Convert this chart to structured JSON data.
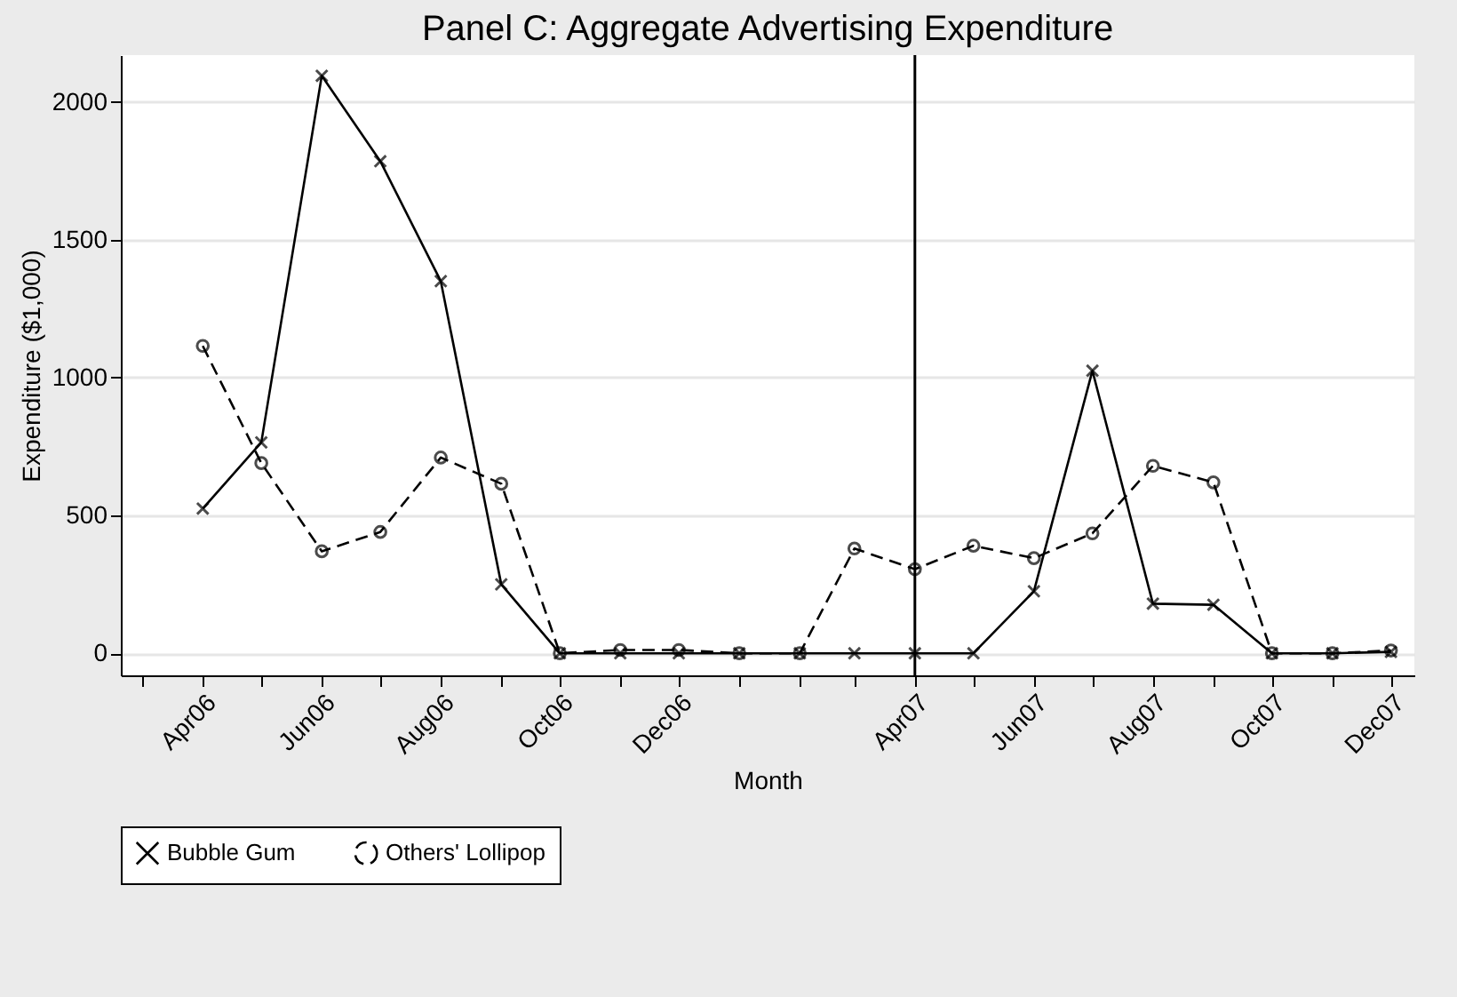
{
  "chart_data": {
    "type": "line",
    "title": "Panel C: Aggregate Advertising Expenditure",
    "xlabel": "Month",
    "ylabel": "Expenditure ($1,000)",
    "x": [
      "2006-04",
      "2006-05",
      "2006-06",
      "2006-07",
      "2006-08",
      "2006-09",
      "2006-10",
      "2006-11",
      "2006-12",
      "2007-01",
      "2007-02",
      "2007-03",
      "2007-04",
      "2007-05",
      "2007-06",
      "2007-07",
      "2007-08",
      "2007-09",
      "2007-10",
      "2007-11",
      "2007-12"
    ],
    "series": [
      {
        "name": "Bubble Gum",
        "color": "#000000",
        "marker": "cross",
        "line_style": "solid",
        "values": [
          525,
          765,
          2095,
          1785,
          1350,
          250,
          0,
          0,
          0,
          0,
          0,
          0,
          0,
          0,
          225,
          1025,
          180,
          176,
          0,
          0,
          5
        ]
      },
      {
        "name": "Others' Lollipop",
        "color": "#000000",
        "marker": "circle",
        "line_style": "dashed",
        "values": [
          1115,
          690,
          370,
          440,
          710,
          615,
          0,
          12,
          12,
          0,
          0,
          380,
          305,
          390,
          345,
          435,
          680,
          620,
          0,
          0,
          10
        ]
      }
    ],
    "xlim": [
      "2006-02-18",
      "2007-12-13"
    ],
    "xticks": [
      {
        "value": "2006-03",
        "label": null
      },
      {
        "value": "2006-04",
        "label": "Apr06"
      },
      {
        "value": "2006-05",
        "label": null
      },
      {
        "value": "2006-06",
        "label": "Jun06"
      },
      {
        "value": "2006-07",
        "label": null
      },
      {
        "value": "2006-08",
        "label": "Aug06"
      },
      {
        "value": "2006-09",
        "label": null
      },
      {
        "value": "2006-10",
        "label": "Oct06"
      },
      {
        "value": "2006-11",
        "label": null
      },
      {
        "value": "2006-12",
        "label": "Dec06"
      },
      {
        "value": "2007-01",
        "label": null
      },
      {
        "value": "2007-02",
        "label": null
      },
      {
        "value": "2007-03",
        "label": null
      },
      {
        "value": "2007-04",
        "label": "Apr07"
      },
      {
        "value": "2007-05",
        "label": null
      },
      {
        "value": "2007-06",
        "label": "Jun07"
      },
      {
        "value": "2007-07",
        "label": null
      },
      {
        "value": "2007-08",
        "label": "Aug07"
      },
      {
        "value": "2007-09",
        "label": null
      },
      {
        "value": "2007-10",
        "label": "Oct07"
      },
      {
        "value": "2007-11",
        "label": null
      },
      {
        "value": "2007-12",
        "label": "Dec07"
      }
    ],
    "ylim": [
      -80,
      2170
    ],
    "yticks": [
      0,
      500,
      1000,
      1500,
      2000
    ],
    "ref_lines": [
      {
        "axis": "x",
        "value": "2007-04",
        "color": "#000000"
      }
    ],
    "grid": "y",
    "legend": "bottom"
  }
}
